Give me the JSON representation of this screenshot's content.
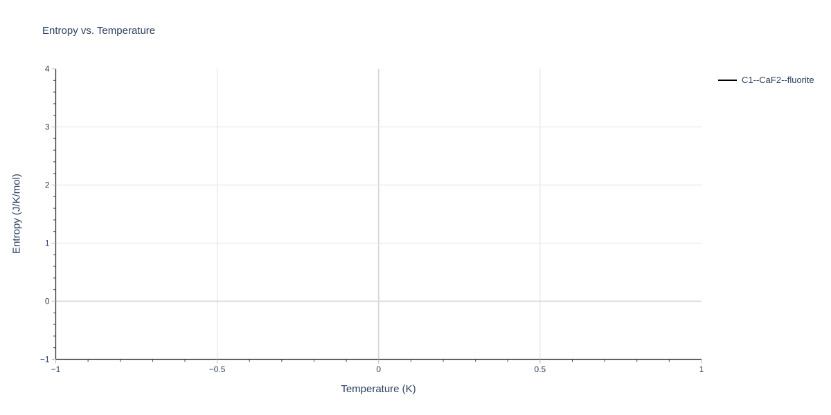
{
  "chart_data": {
    "type": "line",
    "title": "Entropy vs. Temperature",
    "xlabel": "Temperature (K)",
    "ylabel": "Entropy (J/K/mol)",
    "xlim": [
      -1,
      1
    ],
    "ylim": [
      -1,
      4
    ],
    "x_ticks": {
      "values": [
        -1,
        -0.5,
        0,
        0.5,
        1
      ],
      "labels": [
        "−1",
        "−0.5",
        "0",
        "0.5",
        "1"
      ],
      "minor_step": 0.1
    },
    "y_ticks": {
      "values": [
        -1,
        0,
        1,
        2,
        3,
        4
      ],
      "labels": [
        "−1",
        "0",
        "1",
        "2",
        "3",
        "4"
      ],
      "minor_step": 0.2
    },
    "grid": true,
    "zerolines": true,
    "legend": {
      "position": "right-top"
    },
    "series": [
      {
        "name": "C1--CaF2--fluorite",
        "color": "#000000",
        "x": [],
        "y": []
      }
    ]
  },
  "colors": {
    "background": "#ffffff",
    "text": "#2a3f5f",
    "axis_line": "#333333",
    "major_tick": "#c2c2c8",
    "minor_tick": "#444444",
    "gridline": "#e8e8e8",
    "zeroline": "#d6d6d6"
  }
}
